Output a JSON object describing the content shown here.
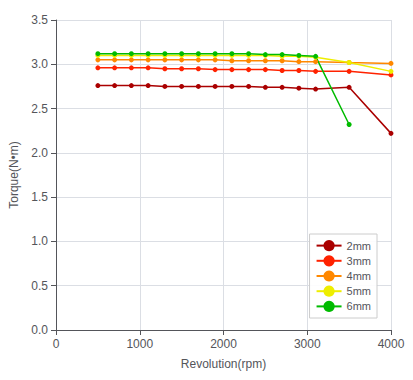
{
  "chart_data": {
    "type": "line",
    "xlabel": "Revolution(rpm)",
    "ylabel": "Torque(N•m)",
    "xlim": [
      0,
      4000
    ],
    "ylim": [
      0,
      3.5
    ],
    "xticks": [
      0,
      1000,
      2000,
      3000,
      4000
    ],
    "yticks": [
      {
        "value": 0,
        "label": "0.0"
      },
      0.5,
      {
        "value": 1,
        "label": "1.0"
      },
      1.5,
      {
        "value": 2,
        "label": "2.0"
      },
      2.5,
      {
        "value": 3,
        "label": "3.0"
      },
      3.5
    ],
    "grid": true,
    "legend": "lower right",
    "series": [
      {
        "name": "2mm",
        "color": "#aa0000",
        "marker": "circle",
        "x": [
          500,
          700,
          900,
          1100,
          1300,
          1500,
          1700,
          1900,
          2100,
          2300,
          2500,
          2700,
          2900,
          3100,
          3500,
          4000
        ],
        "values": [
          2.76,
          2.76,
          2.76,
          2.76,
          2.75,
          2.75,
          2.75,
          2.75,
          2.75,
          2.75,
          2.74,
          2.74,
          2.73,
          2.72,
          2.74,
          2.22
        ]
      },
      {
        "name": "3mm",
        "color": "#ff2200",
        "marker": "circle",
        "x": [
          500,
          700,
          900,
          1100,
          1300,
          1500,
          1700,
          1900,
          2100,
          2300,
          2500,
          2700,
          2900,
          3100,
          3500,
          4000
        ],
        "values": [
          2.96,
          2.96,
          2.96,
          2.96,
          2.95,
          2.95,
          2.95,
          2.94,
          2.94,
          2.94,
          2.94,
          2.93,
          2.93,
          2.92,
          2.92,
          2.88
        ]
      },
      {
        "name": "4mm",
        "color": "#ff8800",
        "marker": "circle",
        "x": [
          500,
          700,
          900,
          1100,
          1300,
          1500,
          1700,
          1900,
          2100,
          2300,
          2500,
          2700,
          2900,
          3100,
          3500,
          4000
        ],
        "values": [
          3.05,
          3.05,
          3.05,
          3.05,
          3.05,
          3.05,
          3.05,
          3.05,
          3.04,
          3.04,
          3.04,
          3.04,
          3.03,
          3.03,
          3.02,
          3.01
        ]
      },
      {
        "name": "5mm",
        "color": "#eeee00",
        "marker": "circle",
        "x": [
          500,
          700,
          900,
          1100,
          1300,
          1500,
          1700,
          1900,
          2100,
          2300,
          2500,
          2700,
          2900,
          3100,
          3500,
          4000
        ],
        "values": [
          3.1,
          3.1,
          3.1,
          3.1,
          3.1,
          3.1,
          3.1,
          3.1,
          3.1,
          3.1,
          3.1,
          3.09,
          3.09,
          3.08,
          3.02,
          2.92
        ]
      },
      {
        "name": "6mm",
        "color": "#00bb00",
        "marker": "circle",
        "x": [
          500,
          700,
          900,
          1100,
          1300,
          1500,
          1700,
          1900,
          2100,
          2300,
          2500,
          2700,
          2900,
          3100,
          3500
        ],
        "values": [
          3.12,
          3.12,
          3.12,
          3.12,
          3.12,
          3.12,
          3.12,
          3.12,
          3.12,
          3.12,
          3.11,
          3.11,
          3.1,
          3.09,
          2.32
        ]
      }
    ]
  }
}
